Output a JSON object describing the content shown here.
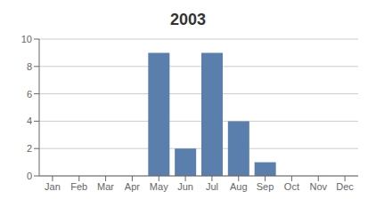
{
  "chart_data": {
    "type": "bar",
    "title": "2003",
    "categories": [
      "Jan",
      "Feb",
      "Mar",
      "Apr",
      "May",
      "Jun",
      "Jul",
      "Aug",
      "Sep",
      "Oct",
      "Nov",
      "Dec"
    ],
    "values": [
      0,
      0,
      0,
      0,
      9,
      2,
      9,
      4,
      1,
      0,
      0,
      0
    ],
    "color": "#5b7fac",
    "ylim": [
      0,
      10
    ],
    "yticks": [
      0,
      2,
      4,
      6,
      8,
      10
    ],
    "grid": true
  }
}
